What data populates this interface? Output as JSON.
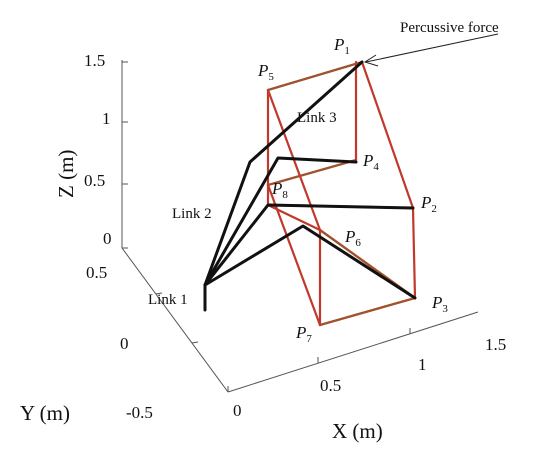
{
  "axes": {
    "x_label": "X (m)",
    "y_label": "Y (m)",
    "z_label": "Z (m)",
    "x_ticks": [
      "0",
      "0.5",
      "1",
      "1.5"
    ],
    "y_ticks": [
      "-0.5",
      "0",
      "0.5"
    ],
    "z_ticks": [
      "0",
      "0.5",
      "1",
      "1.5"
    ]
  },
  "points": [
    {
      "base": "P",
      "index": "1"
    },
    {
      "base": "P",
      "index": "2"
    },
    {
      "base": "P",
      "index": "3"
    },
    {
      "base": "P",
      "index": "4"
    },
    {
      "base": "P",
      "index": "5"
    },
    {
      "base": "P",
      "index": "6"
    },
    {
      "base": "P",
      "index": "7"
    },
    {
      "base": "P",
      "index": "8"
    }
  ],
  "annotations": {
    "force": "Percussive force",
    "link1": "Link 1",
    "link2": "Link 2",
    "link3": "Link 3"
  },
  "colors": {
    "frame_front": "#c0392b",
    "frame_back": "#a0522d",
    "links": "#111111"
  }
}
